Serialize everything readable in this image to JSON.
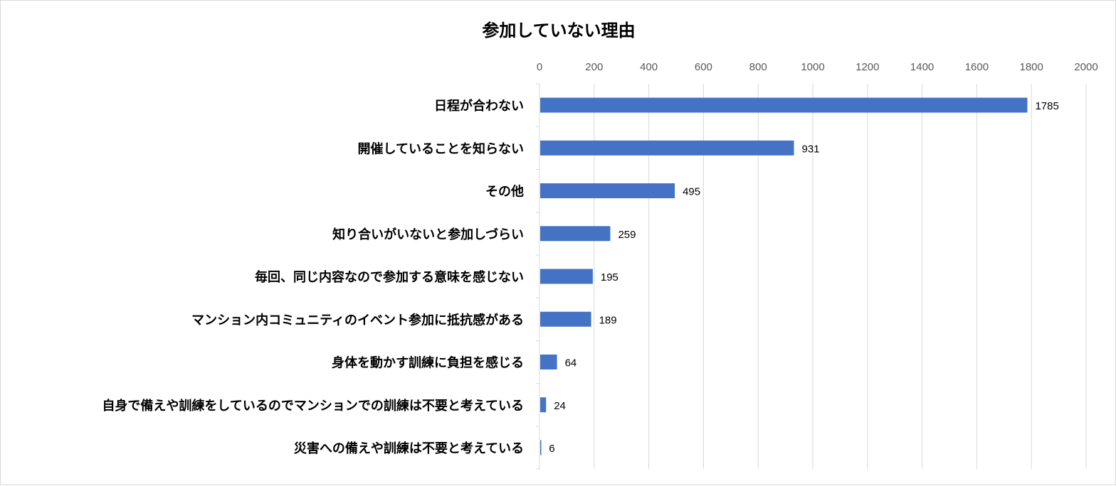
{
  "chart_data": {
    "type": "bar",
    "orientation": "horizontal",
    "title": "参加していない理由",
    "xlabel": "",
    "ylabel": "",
    "xlim": [
      0,
      2000
    ],
    "x_ticks": [
      "0",
      "200",
      "400",
      "600",
      "800",
      "1000",
      "1200",
      "1400",
      "1600",
      "1800",
      "2000"
    ],
    "x_axis_position": "top",
    "grid": true,
    "legend": "none",
    "bar_color": "#4472C4",
    "categories": [
      "日程が合わない",
      "開催していることを知らない",
      "その他",
      "知り合いがいないと参加しづらい",
      "毎回、同じ内容なので参加する意味を感じない",
      "マンション内コミュニティのイベント参加に抵抗感がある",
      "身体を動かす訓練に負担を感じる",
      "自身で備えや訓練をしているのでマンションでの訓練は不要と考えている",
      "災害への備えや訓練は不要と考えている"
    ],
    "values": [
      1785,
      931,
      495,
      259,
      195,
      189,
      64,
      24,
      6
    ],
    "data_labels": [
      "1785",
      "931",
      "495",
      "259",
      "195",
      "189",
      "64",
      "24",
      "6"
    ]
  }
}
